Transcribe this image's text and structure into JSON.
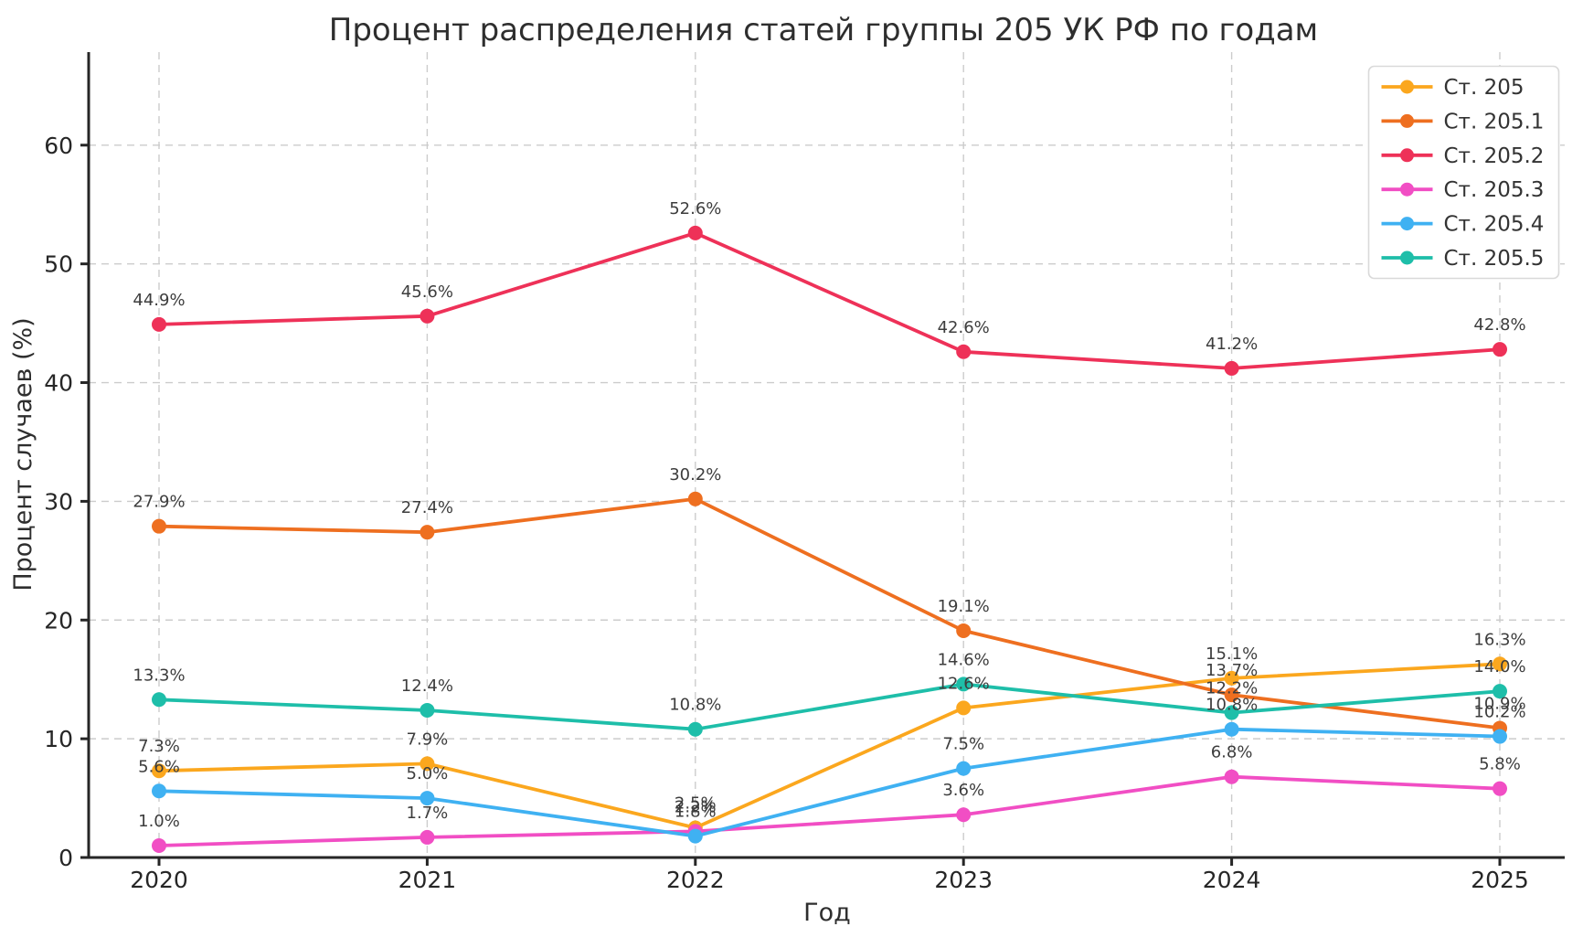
{
  "chart_data": {
    "type": "line",
    "title": "Процент распределения статей группы 205 УК РФ по годам",
    "xlabel": "Год",
    "ylabel": "Процент случаев (%)",
    "x": [
      2020,
      2021,
      2022,
      2023,
      2024,
      2025
    ],
    "y_ticks": [
      0,
      10,
      20,
      30,
      40,
      50,
      60
    ],
    "ylim": [
      0,
      67.5
    ],
    "grid": "dashed-both-axes",
    "legend_position": "top-right",
    "point_label_format": "{value}%",
    "series": [
      {
        "key": "st-205",
        "name": "Ст. 205",
        "color": "#FBA71E",
        "values": [
          7.3,
          7.9,
          2.5,
          12.6,
          15.1,
          16.3
        ]
      },
      {
        "key": "st-205-1",
        "name": "Ст. 205.1",
        "color": "#EE6F20",
        "values": [
          27.9,
          27.4,
          30.2,
          19.1,
          13.7,
          10.9
        ]
      },
      {
        "key": "st-205-2",
        "name": "Ст. 205.2",
        "color": "#EE3158",
        "values": [
          44.9,
          45.6,
          52.6,
          42.6,
          41.2,
          42.8
        ]
      },
      {
        "key": "st-205-3",
        "name": "Ст. 205.3",
        "color": "#F14EC4",
        "values": [
          1.0,
          1.7,
          2.2,
          3.6,
          6.8,
          5.8
        ]
      },
      {
        "key": "st-205-4",
        "name": "Ст. 205.4",
        "color": "#3FB1F2",
        "values": [
          5.6,
          5.0,
          1.8,
          7.5,
          10.8,
          10.2
        ]
      },
      {
        "key": "st-205-5",
        "name": "Ст. 205.5",
        "color": "#1EBEA9",
        "values": [
          13.3,
          12.4,
          10.8,
          14.6,
          12.2,
          14.0
        ]
      }
    ],
    "colors": {
      "text": "#333333",
      "tick_text": "#262626",
      "point_label_text": "#3d3d3d",
      "grid": "#cccccc",
      "axis": "#262626",
      "background": "#ffffff",
      "legend_border": "#d9d9d9",
      "legend_background": "#ffffff"
    }
  }
}
